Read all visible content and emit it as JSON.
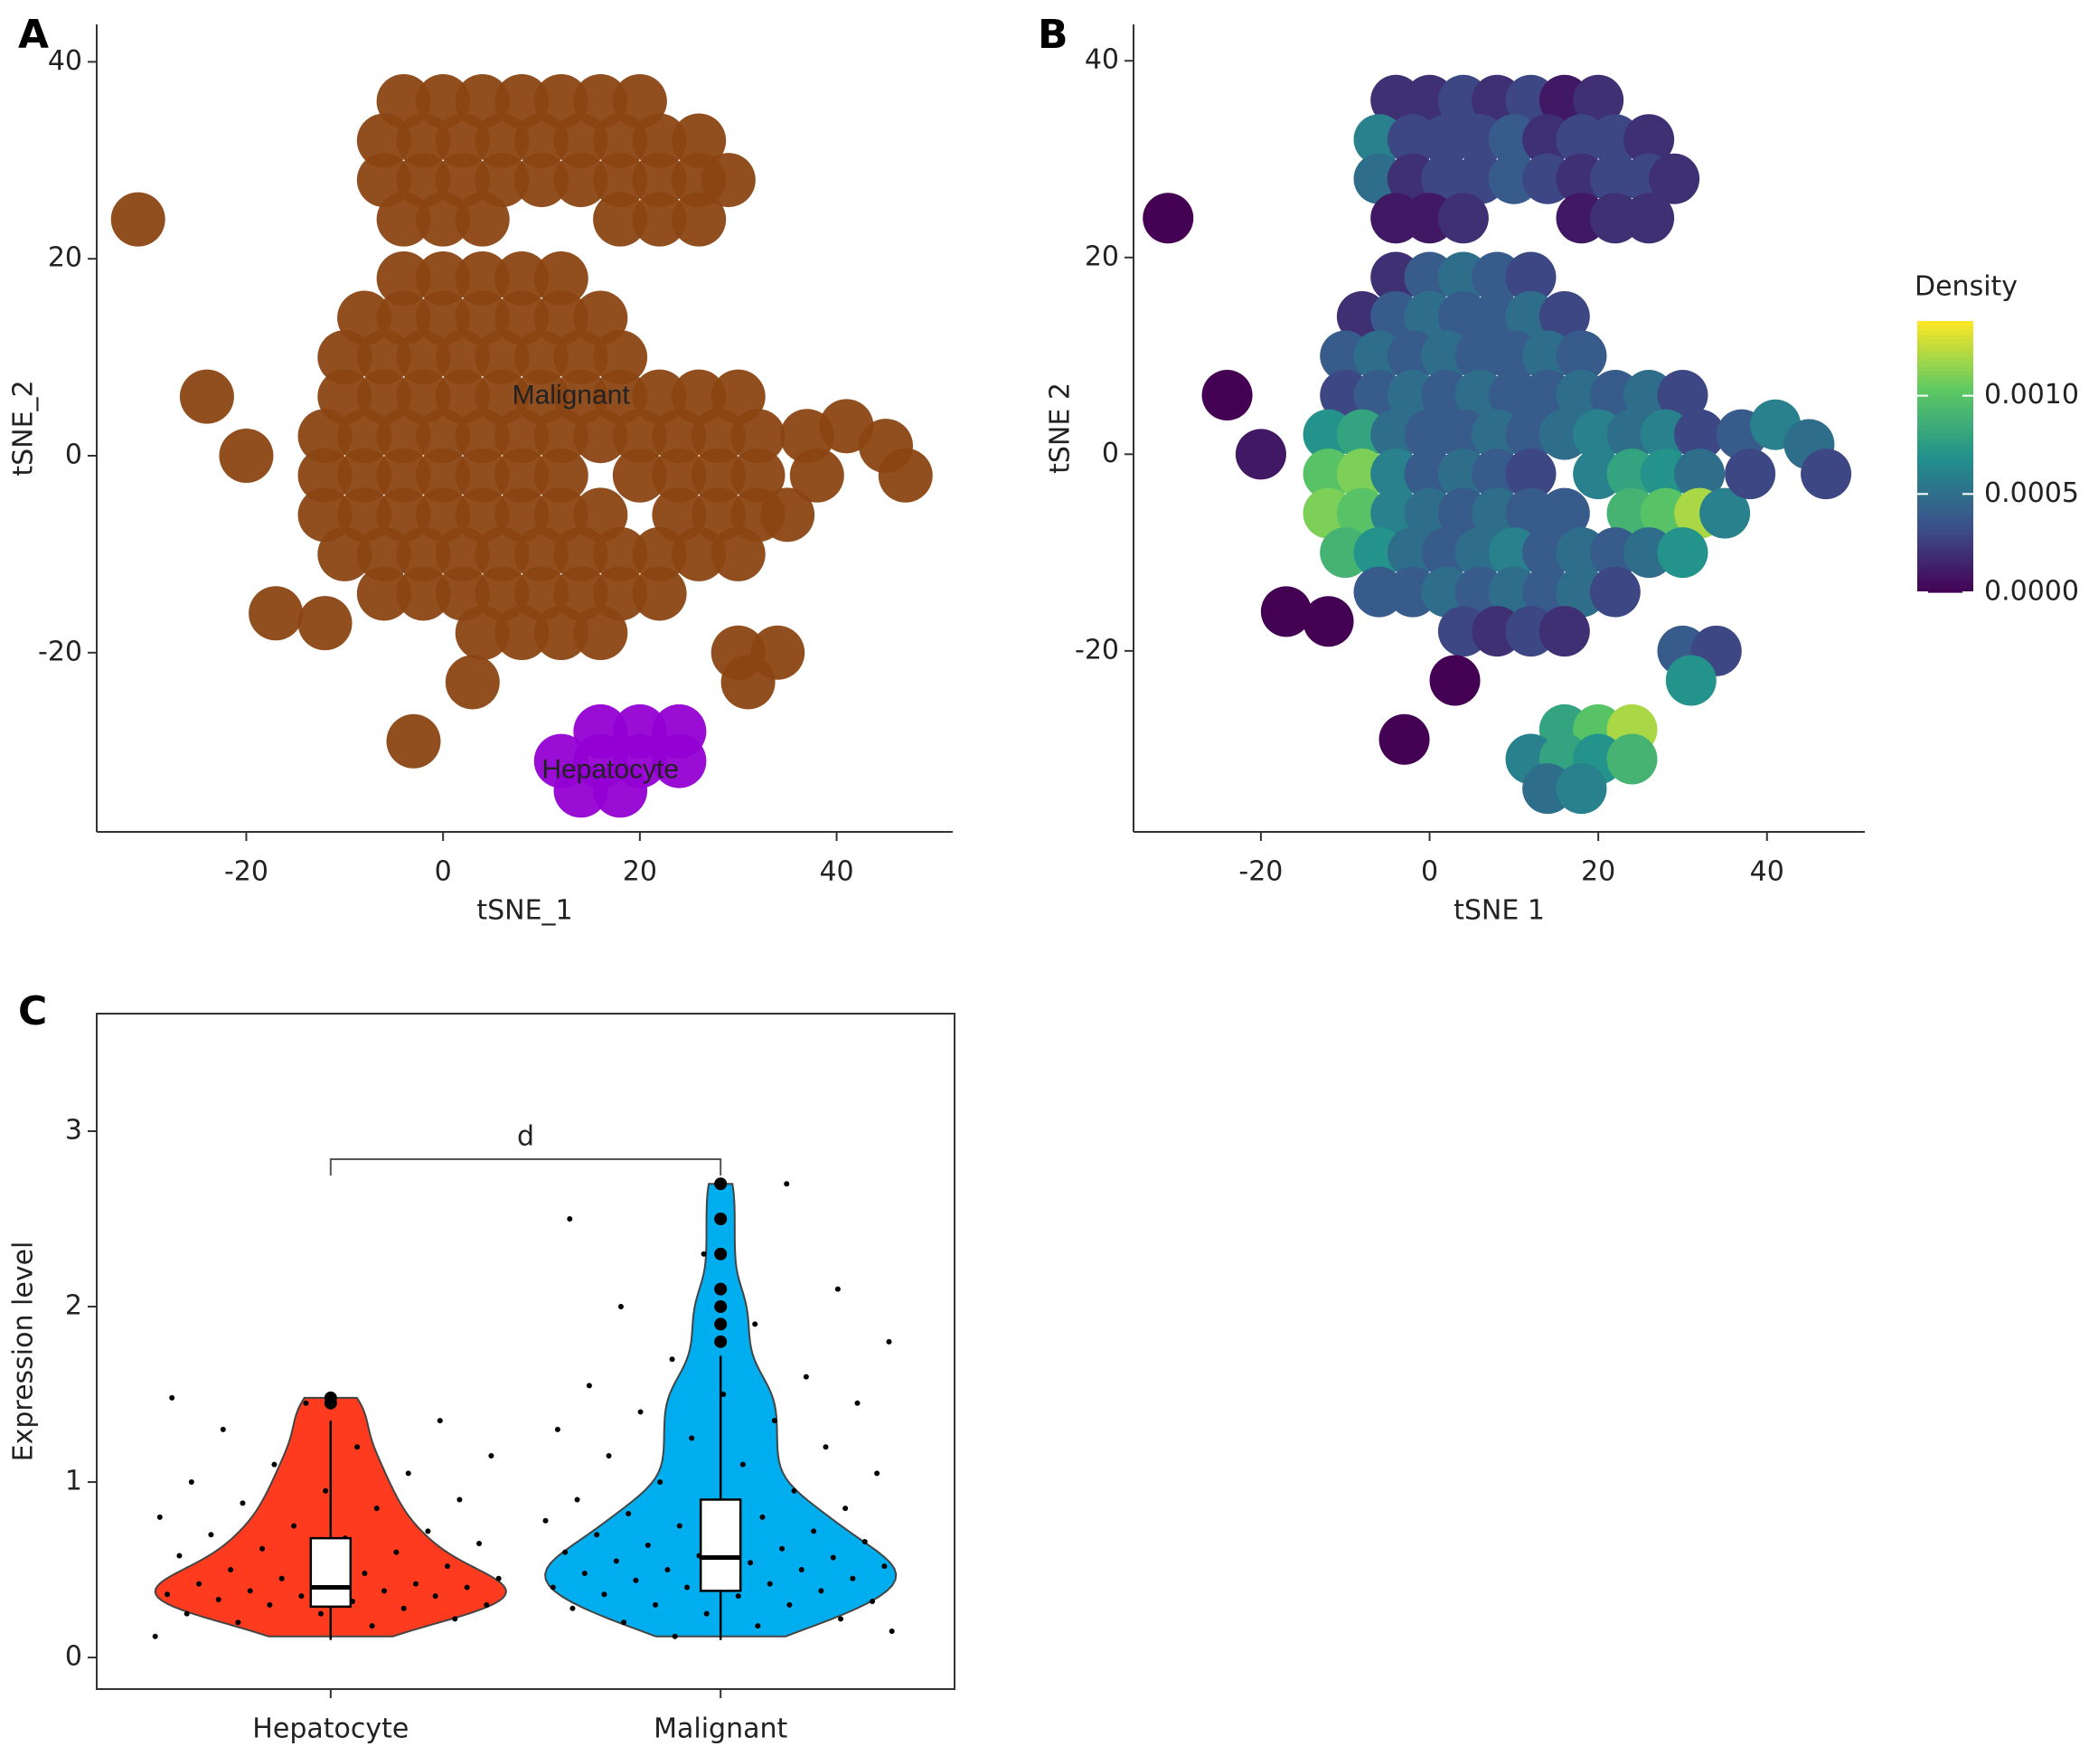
{
  "chart_data": [
    {
      "type": "scatter",
      "panel": "A",
      "xlabel": "tSNE_1",
      "ylabel": "tSNE_2",
      "xlim": [
        -35.2,
        51.8
      ],
      "ylim": [
        -38.2,
        43.8
      ],
      "xticks": [
        -20,
        0,
        20,
        40
      ],
      "yticks": [
        -20,
        0,
        20,
        40
      ],
      "series": [
        {
          "name": "Malignant",
          "color": "#8b4513",
          "label_at": [
            13,
            6
          ],
          "x": [
            -4,
            0,
            4,
            8,
            12,
            16,
            20,
            -6,
            -2,
            2,
            6,
            10,
            14,
            18,
            22,
            26,
            -6,
            -2,
            2,
            6,
            10,
            14,
            18,
            22,
            26,
            29,
            -4,
            0,
            4,
            18,
            22,
            26,
            -4,
            0,
            4,
            8,
            12,
            -8,
            -4,
            0,
            4,
            8,
            12,
            16,
            -10,
            -6,
            -2,
            2,
            6,
            10,
            14,
            18,
            -10,
            -6,
            -2,
            2,
            6,
            10,
            14,
            18,
            22,
            26,
            30,
            -12,
            -8,
            -4,
            0,
            4,
            8,
            12,
            16,
            20,
            24,
            28,
            32,
            -12,
            -8,
            -4,
            0,
            4,
            8,
            12,
            20,
            24,
            28,
            32,
            -12,
            -8,
            -4,
            0,
            4,
            8,
            12,
            16,
            24,
            28,
            32,
            35,
            -10,
            -6,
            -2,
            2,
            6,
            10,
            14,
            18,
            22,
            26,
            30,
            -6,
            -2,
            2,
            6,
            10,
            14,
            18,
            22,
            4,
            8,
            12,
            16,
            37,
            41,
            45,
            47,
            38,
            30,
            34,
            31,
            -31,
            -24,
            -20,
            -17,
            -12,
            -3,
            3
          ],
          "y": [
            36,
            36,
            36,
            36,
            36,
            36,
            36,
            32,
            32,
            32,
            32,
            32,
            32,
            32,
            32,
            32,
            28,
            28,
            28,
            28,
            28,
            28,
            28,
            28,
            28,
            28,
            24,
            24,
            24,
            24,
            24,
            24,
            18,
            18,
            18,
            18,
            18,
            14,
            14,
            14,
            14,
            14,
            14,
            14,
            10,
            10,
            10,
            10,
            10,
            10,
            10,
            10,
            6,
            6,
            6,
            6,
            6,
            6,
            6,
            6,
            6,
            6,
            6,
            2,
            2,
            2,
            2,
            2,
            2,
            2,
            2,
            2,
            2,
            2,
            2,
            -2,
            -2,
            -2,
            -2,
            -2,
            -2,
            -2,
            -2,
            -2,
            -2,
            -2,
            -6,
            -6,
            -6,
            -6,
            -6,
            -6,
            -6,
            -6,
            -6,
            -6,
            -6,
            -6,
            -10,
            -10,
            -10,
            -10,
            -10,
            -10,
            -10,
            -10,
            -10,
            -10,
            -10,
            -14,
            -14,
            -14,
            -14,
            -14,
            -14,
            -14,
            -14,
            -18,
            -18,
            -18,
            -18,
            2,
            3,
            1,
            -2,
            -2,
            -20,
            -20,
            -23,
            24,
            6,
            0,
            -16,
            -17,
            -29,
            -23
          ]
        },
        {
          "name": "Hepatocyte",
          "color": "#9400d3",
          "label_at": [
            17,
            -32
          ],
          "x": [
            16,
            20,
            24,
            12,
            16,
            20,
            24,
            14,
            18
          ],
          "y": [
            -28,
            -28,
            -28,
            -31,
            -31,
            -31,
            -31,
            -34,
            -34
          ]
        }
      ]
    },
    {
      "type": "density_scatter",
      "panel": "B",
      "xlabel": "tSNE 1",
      "ylabel": "tSNE 2",
      "xlim": [
        -35.1,
        51.6
      ],
      "ylim": [
        -38.4,
        43.7
      ],
      "xticks": [
        -20,
        0,
        20,
        40
      ],
      "yticks": [
        -20,
        0,
        20,
        40
      ],
      "x": [
        -4,
        0,
        4,
        8,
        12,
        16,
        20,
        -6,
        -2,
        2,
        6,
        10,
        14,
        18,
        22,
        26,
        -6,
        -2,
        2,
        6,
        10,
        14,
        18,
        22,
        26,
        29,
        -4,
        0,
        4,
        18,
        22,
        26,
        -4,
        0,
        4,
        8,
        12,
        -8,
        -4,
        0,
        4,
        8,
        12,
        16,
        -10,
        -6,
        -2,
        2,
        6,
        10,
        14,
        18,
        -10,
        -6,
        -2,
        2,
        6,
        10,
        14,
        18,
        22,
        26,
        30,
        -12,
        -8,
        -4,
        0,
        4,
        8,
        12,
        16,
        20,
        24,
        28,
        32,
        -12,
        -8,
        -4,
        0,
        4,
        8,
        12,
        20,
        24,
        28,
        32,
        -12,
        -8,
        -4,
        0,
        4,
        8,
        12,
        16,
        24,
        28,
        32,
        35,
        -10,
        -6,
        -2,
        2,
        6,
        10,
        14,
        18,
        22,
        26,
        30,
        -6,
        -2,
        2,
        6,
        10,
        14,
        18,
        22,
        4,
        8,
        12,
        16,
        37,
        41,
        45,
        47,
        38,
        30,
        34,
        31,
        -31,
        -24,
        -20,
        -17,
        -12,
        -3,
        3,
        16,
        20,
        24,
        12,
        16,
        20,
        24,
        14,
        18
      ],
      "y": [
        36,
        36,
        36,
        36,
        36,
        36,
        36,
        32,
        32,
        32,
        32,
        32,
        32,
        32,
        32,
        32,
        28,
        28,
        28,
        28,
        28,
        28,
        28,
        28,
        28,
        28,
        24,
        24,
        24,
        24,
        24,
        24,
        18,
        18,
        18,
        18,
        18,
        14,
        14,
        14,
        14,
        14,
        14,
        14,
        10,
        10,
        10,
        10,
        10,
        10,
        10,
        10,
        6,
        6,
        6,
        6,
        6,
        6,
        6,
        6,
        6,
        6,
        6,
        2,
        2,
        2,
        2,
        2,
        2,
        2,
        2,
        2,
        2,
        2,
        2,
        -2,
        -2,
        -2,
        -2,
        -2,
        -2,
        -2,
        -2,
        -2,
        -2,
        -2,
        -6,
        -6,
        -6,
        -6,
        -6,
        -6,
        -6,
        -6,
        -6,
        -6,
        -6,
        -6,
        -10,
        -10,
        -10,
        -10,
        -10,
        -10,
        -10,
        -10,
        -10,
        -10,
        -10,
        -14,
        -14,
        -14,
        -14,
        -14,
        -14,
        -14,
        -14,
        -18,
        -18,
        -18,
        -18,
        2,
        3,
        1,
        -2,
        -2,
        -20,
        -20,
        -23,
        24,
        6,
        0,
        -16,
        -17,
        -29,
        -23,
        -28,
        -28,
        -28,
        -31,
        -31,
        -31,
        -31,
        -34,
        -34
      ],
      "values": [
        0.0002,
        0.0002,
        0.0003,
        0.0002,
        0.0003,
        0.0001,
        0.0002,
        0.0006,
        0.0003,
        0.0003,
        0.0003,
        0.0004,
        0.0002,
        0.0003,
        0.0003,
        0.0002,
        0.0005,
        0.0002,
        0.0003,
        0.0003,
        0.0004,
        0.0003,
        0.0002,
        0.0003,
        0.0003,
        0.0002,
        0.0001,
        0.0001,
        0.0002,
        0.0001,
        0.0002,
        0.0002,
        0.0002,
        0.0004,
        0.0005,
        0.0004,
        0.0003,
        0.0002,
        0.0004,
        0.0005,
        0.0004,
        0.0004,
        0.0005,
        0.0003,
        0.0004,
        0.0005,
        0.0004,
        0.0005,
        0.0004,
        0.0004,
        0.0005,
        0.0004,
        0.0003,
        0.0004,
        0.0005,
        0.0004,
        0.0005,
        0.0004,
        0.0004,
        0.0005,
        0.0004,
        0.0005,
        0.0003,
        0.0007,
        0.0008,
        0.0005,
        0.0004,
        0.0004,
        0.0005,
        0.0004,
        0.0005,
        0.0006,
        0.0005,
        0.0006,
        0.0003,
        0.001,
        0.0011,
        0.0006,
        0.0004,
        0.0005,
        0.0004,
        0.0003,
        0.0006,
        0.0008,
        0.0007,
        0.0005,
        0.0011,
        0.001,
        0.0006,
        0.0005,
        0.0004,
        0.0005,
        0.0004,
        0.0004,
        0.0009,
        0.001,
        0.0012,
        0.0006,
        0.0009,
        0.0007,
        0.0005,
        0.0004,
        0.0005,
        0.0006,
        0.0004,
        0.0005,
        0.0004,
        0.0005,
        0.0007,
        0.0004,
        0.0004,
        0.0005,
        0.0004,
        0.0005,
        0.0004,
        0.0005,
        0.0003,
        0.0003,
        0.0002,
        0.0003,
        0.0002,
        0.0004,
        0.0006,
        0.0005,
        0.0003,
        0.0003,
        0.0004,
        0.0003,
        0.0007,
        0,
        0,
        0.0001,
        0,
        0,
        0,
        0,
        0.0008,
        0.001,
        0.0012,
        0.0006,
        0.0008,
        0.0007,
        0.0009,
        0.0005,
        0.0006
      ],
      "colorbar": {
        "title": "Density",
        "colormap": "viridis",
        "lim": [
          0,
          0.00138
        ],
        "ticks": [
          {
            "value": 0,
            "label": "0.0000"
          },
          {
            "value": 0.0005,
            "label": "0.0005"
          },
          {
            "value": 0.001,
            "label": "0.0010"
          }
        ]
      }
    },
    {
      "type": "violin",
      "panel": "C",
      "ylabel": "Expression level",
      "ylim": [
        -0.18,
        3.67
      ],
      "yticks": [
        0,
        1,
        2,
        3
      ],
      "categories": [
        "Hepatocyte",
        "Malignant"
      ],
      "colors": [
        "#ff3b1f",
        "#00aeef"
      ],
      "groups": [
        {
          "points": [
            0.12,
            0.18,
            0.2,
            0.22,
            0.25,
            0.25,
            0.28,
            0.3,
            0.3,
            0.32,
            0.33,
            0.35,
            0.35,
            0.36,
            0.38,
            0.38,
            0.4,
            0.4,
            0.42,
            0.42,
            0.45,
            0.45,
            0.48,
            0.5,
            0.52,
            0.55,
            0.58,
            0.6,
            0.62,
            0.65,
            0.68,
            0.7,
            0.72,
            0.75,
            0.8,
            0.85,
            0.88,
            0.9,
            0.95,
            1.0,
            1.05,
            1.1,
            1.15,
            1.2,
            1.3,
            1.35,
            1.45,
            1.48
          ],
          "q1": 0.29,
          "median": 0.4,
          "q3": 0.68,
          "whisker_low": 0.1,
          "whisker_high": 1.35
        },
        {
          "points": [
            0.12,
            0.15,
            0.18,
            0.2,
            0.22,
            0.25,
            0.28,
            0.3,
            0.3,
            0.32,
            0.35,
            0.36,
            0.38,
            0.4,
            0.4,
            0.42,
            0.44,
            0.45,
            0.46,
            0.48,
            0.5,
            0.5,
            0.52,
            0.54,
            0.55,
            0.57,
            0.58,
            0.6,
            0.62,
            0.64,
            0.66,
            0.68,
            0.7,
            0.72,
            0.75,
            0.78,
            0.8,
            0.82,
            0.85,
            0.88,
            0.9,
            0.95,
            1.0,
            1.05,
            1.1,
            1.15,
            1.2,
            1.25,
            1.3,
            1.35,
            1.4,
            1.45,
            1.5,
            1.55,
            1.6,
            1.7,
            1.8,
            1.9,
            2.0,
            2.1,
            2.3,
            2.5,
            2.7
          ],
          "q1": 0.38,
          "median": 0.57,
          "q3": 0.9,
          "whisker_low": 0.1,
          "whisker_high": 1.72
        }
      ],
      "bracket": {
        "label": "d",
        "y": 2.84
      }
    }
  ]
}
